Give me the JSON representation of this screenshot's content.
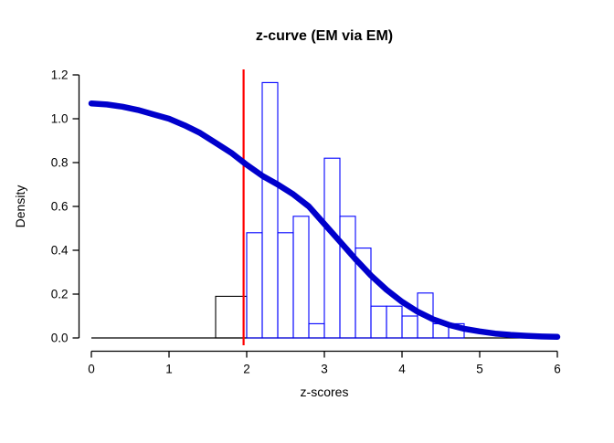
{
  "chart_data": {
    "type": "histogram",
    "title": "z-curve (EM via EM)",
    "xlabel": "z-scores",
    "ylabel": "Density",
    "xlim": [
      0,
      6
    ],
    "ylim": [
      0,
      1.2
    ],
    "grid": false,
    "legend": "none",
    "x_ticks": [
      {
        "v": 0,
        "label": "0"
      },
      {
        "v": 1,
        "label": "1"
      },
      {
        "v": 2,
        "label": "2"
      },
      {
        "v": 3,
        "label": "3"
      },
      {
        "v": 4,
        "label": "4"
      },
      {
        "v": 5,
        "label": "5"
      },
      {
        "v": 6,
        "label": "6"
      }
    ],
    "y_ticks": [
      {
        "v": 0.0,
        "label": "0.0"
      },
      {
        "v": 0.2,
        "label": "0.2"
      },
      {
        "v": 0.4,
        "label": "0.4"
      },
      {
        "v": 0.6,
        "label": "0.6"
      },
      {
        "v": 0.8,
        "label": "0.8"
      },
      {
        "v": 1.0,
        "label": "1.0"
      },
      {
        "v": 1.2,
        "label": "1.2"
      }
    ],
    "colors": {
      "curve": "#0000CC",
      "vline": "#FF0000",
      "bar_sig": "#0000FF",
      "bar_nonsig": "#000000",
      "axis": "#000000",
      "baseline": "#000000",
      "bar_fill": "none"
    },
    "vline_x": 1.96,
    "baseline": {
      "y": 0,
      "from": 0,
      "to": 6
    },
    "histogram_bins": [
      {
        "x0": 1.6,
        "x1": 2.0,
        "h": 0.19,
        "group": "nonsig"
      },
      {
        "x0": 2.0,
        "x1": 2.2,
        "h": 0.48,
        "group": "sig"
      },
      {
        "x0": 2.2,
        "x1": 2.4,
        "h": 1.165,
        "group": "sig"
      },
      {
        "x0": 2.4,
        "x1": 2.6,
        "h": 0.48,
        "group": "sig"
      },
      {
        "x0": 2.6,
        "x1": 2.8,
        "h": 0.555,
        "group": "sig"
      },
      {
        "x0": 2.8,
        "x1": 3.0,
        "h": 0.065,
        "group": "sig"
      },
      {
        "x0": 3.0,
        "x1": 3.2,
        "h": 0.82,
        "group": "sig"
      },
      {
        "x0": 3.2,
        "x1": 3.4,
        "h": 0.555,
        "group": "sig"
      },
      {
        "x0": 3.4,
        "x1": 3.6,
        "h": 0.41,
        "group": "sig"
      },
      {
        "x0": 3.6,
        "x1": 3.8,
        "h": 0.145,
        "group": "sig"
      },
      {
        "x0": 3.8,
        "x1": 4.0,
        "h": 0.145,
        "group": "sig"
      },
      {
        "x0": 4.0,
        "x1": 4.2,
        "h": 0.1,
        "group": "sig"
      },
      {
        "x0": 4.2,
        "x1": 4.4,
        "h": 0.205,
        "group": "sig"
      },
      {
        "x0": 4.4,
        "x1": 4.6,
        "h": 0.065,
        "group": "sig"
      },
      {
        "x0": 4.6,
        "x1": 4.8,
        "h": 0.065,
        "group": "sig"
      }
    ],
    "curve_points": [
      [
        0.0,
        1.07
      ],
      [
        0.2,
        1.065
      ],
      [
        0.4,
        1.055
      ],
      [
        0.6,
        1.04
      ],
      [
        0.8,
        1.02
      ],
      [
        1.0,
        1.0
      ],
      [
        1.2,
        0.97
      ],
      [
        1.4,
        0.935
      ],
      [
        1.6,
        0.89
      ],
      [
        1.8,
        0.845
      ],
      [
        2.0,
        0.79
      ],
      [
        2.2,
        0.74
      ],
      [
        2.4,
        0.7
      ],
      [
        2.6,
        0.655
      ],
      [
        2.8,
        0.6
      ],
      [
        3.0,
        0.52
      ],
      [
        3.2,
        0.44
      ],
      [
        3.4,
        0.36
      ],
      [
        3.6,
        0.285
      ],
      [
        3.8,
        0.22
      ],
      [
        4.0,
        0.165
      ],
      [
        4.2,
        0.12
      ],
      [
        4.4,
        0.085
      ],
      [
        4.6,
        0.06
      ],
      [
        4.8,
        0.042
      ],
      [
        5.0,
        0.03
      ],
      [
        5.2,
        0.02
      ],
      [
        5.4,
        0.014
      ],
      [
        5.6,
        0.01
      ],
      [
        5.8,
        0.007
      ],
      [
        6.0,
        0.005
      ]
    ]
  }
}
